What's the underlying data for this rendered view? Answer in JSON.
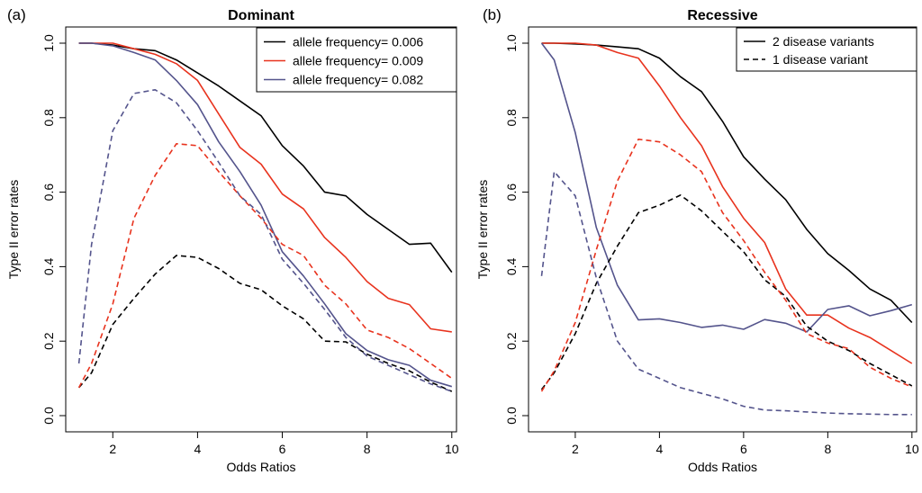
{
  "chart_data": [
    {
      "type": "line",
      "panel_tag": "(a)",
      "title": "Dominant",
      "xlabel": "Odds Ratios",
      "ylabel": "Type II error rates",
      "xlim": [
        1,
        10
      ],
      "ylim": [
        0,
        1
      ],
      "xticks": [
        "2",
        "4",
        "6",
        "8",
        "10"
      ],
      "yticks": [
        "0.0",
        "0.2",
        "0.4",
        "0.6",
        "0.8",
        "1.0"
      ],
      "legend_position": "top-right",
      "legend": [
        {
          "label": "allele frequency= 0.006",
          "color": "#000000",
          "dash": "solid"
        },
        {
          "label": "allele frequency= 0.009",
          "color": "#e8331e",
          "dash": "solid"
        },
        {
          "label": "allele frequency= 0.082",
          "color": "#54548c",
          "dash": "solid"
        }
      ],
      "x": [
        1.2,
        1.5,
        2,
        2.5,
        3,
        3.5,
        4,
        4.5,
        5,
        5.5,
        6,
        6.5,
        7,
        7.5,
        8,
        8.5,
        9,
        9.5,
        10
      ],
      "series": [
        {
          "color": "#000000",
          "dash": "solid",
          "values": [
            1.0,
            1.0,
            0.995,
            0.985,
            0.98,
            0.955,
            0.92,
            0.885,
            0.845,
            0.805,
            0.725,
            0.67,
            0.6,
            0.59,
            0.54,
            0.5,
            0.46,
            0.463,
            0.385
          ]
        },
        {
          "color": "#e8331e",
          "dash": "solid",
          "values": [
            1.0,
            1.0,
            1.0,
            0.985,
            0.97,
            0.945,
            0.9,
            0.81,
            0.72,
            0.675,
            0.595,
            0.555,
            0.478,
            0.425,
            0.36,
            0.315,
            0.298,
            0.233,
            0.225
          ]
        },
        {
          "color": "#54548c",
          "dash": "solid",
          "values": [
            1.0,
            1.0,
            0.993,
            0.975,
            0.955,
            0.9,
            0.835,
            0.735,
            0.655,
            0.565,
            0.44,
            0.375,
            0.3,
            0.22,
            0.175,
            0.15,
            0.135,
            0.095,
            0.078
          ]
        },
        {
          "color": "#000000",
          "dash": "dashed",
          "values": [
            0.075,
            0.115,
            0.245,
            0.315,
            0.38,
            0.43,
            0.425,
            0.395,
            0.355,
            0.338,
            0.295,
            0.26,
            0.2,
            0.198,
            0.165,
            0.14,
            0.12,
            0.09,
            0.065
          ]
        },
        {
          "color": "#e8331e",
          "dash": "dashed",
          "values": [
            0.075,
            0.14,
            0.3,
            0.53,
            0.645,
            0.73,
            0.725,
            0.655,
            0.59,
            0.53,
            0.46,
            0.43,
            0.35,
            0.3,
            0.23,
            0.21,
            0.18,
            0.14,
            0.1
          ]
        },
        {
          "color": "#54548c",
          "dash": "dashed",
          "values": [
            0.14,
            0.46,
            0.765,
            0.865,
            0.875,
            0.84,
            0.765,
            0.68,
            0.59,
            0.54,
            0.42,
            0.355,
            0.285,
            0.21,
            0.16,
            0.135,
            0.11,
            0.085,
            0.065
          ]
        }
      ]
    },
    {
      "type": "line",
      "panel_tag": "(b)",
      "title": "Recessive",
      "xlabel": "Odds Ratios",
      "ylabel": "Type II error rates",
      "xlim": [
        1,
        10
      ],
      "ylim": [
        0,
        1
      ],
      "xticks": [
        "2",
        "4",
        "6",
        "8",
        "10"
      ],
      "yticks": [
        "0.0",
        "0.2",
        "0.4",
        "0.6",
        "0.8",
        "1.0"
      ],
      "legend_position": "top-right",
      "legend": [
        {
          "label": "2 disease variants",
          "color": "#000000",
          "dash": "solid"
        },
        {
          "label": "1 disease variant",
          "color": "#000000",
          "dash": "dashed"
        }
      ],
      "x": [
        1.2,
        1.5,
        2,
        2.5,
        3,
        3.5,
        4,
        4.5,
        5,
        5.5,
        6,
        6.5,
        7,
        7.5,
        8,
        8.5,
        9,
        9.5,
        10
      ],
      "series": [
        {
          "color": "#000000",
          "dash": "solid",
          "values": [
            1.0,
            1.0,
            0.998,
            0.995,
            0.99,
            0.985,
            0.96,
            0.91,
            0.87,
            0.79,
            0.695,
            0.635,
            0.58,
            0.5,
            0.435,
            0.39,
            0.34,
            0.31,
            0.25
          ]
        },
        {
          "color": "#e8331e",
          "dash": "solid",
          "values": [
            1.0,
            1.0,
            1.0,
            0.995,
            0.975,
            0.96,
            0.885,
            0.8,
            0.725,
            0.615,
            0.53,
            0.465,
            0.34,
            0.27,
            0.27,
            0.235,
            0.21,
            0.175,
            0.14
          ]
        },
        {
          "color": "#54548c",
          "dash": "solid",
          "values": [
            1.0,
            0.955,
            0.76,
            0.505,
            0.35,
            0.257,
            0.26,
            0.25,
            0.237,
            0.243,
            0.232,
            0.258,
            0.248,
            0.225,
            0.285,
            0.295,
            0.268,
            0.282,
            0.298
          ]
        },
        {
          "color": "#000000",
          "dash": "dashed",
          "values": [
            0.07,
            0.115,
            0.22,
            0.355,
            0.455,
            0.545,
            0.565,
            0.592,
            0.55,
            0.495,
            0.44,
            0.365,
            0.32,
            0.24,
            0.2,
            0.175,
            0.14,
            0.11,
            0.08
          ]
        },
        {
          "color": "#e8331e",
          "dash": "dashed",
          "values": [
            0.065,
            0.12,
            0.25,
            0.445,
            0.63,
            0.742,
            0.735,
            0.7,
            0.655,
            0.545,
            0.47,
            0.385,
            0.31,
            0.22,
            0.195,
            0.18,
            0.13,
            0.1,
            0.077
          ]
        },
        {
          "color": "#54548c",
          "dash": "dashed",
          "values": [
            0.375,
            0.655,
            0.59,
            0.37,
            0.2,
            0.125,
            0.1,
            0.075,
            0.06,
            0.045,
            0.025,
            0.015,
            0.013,
            0.01,
            0.007,
            0.005,
            0.004,
            0.003,
            0.003
          ]
        }
      ]
    }
  ]
}
